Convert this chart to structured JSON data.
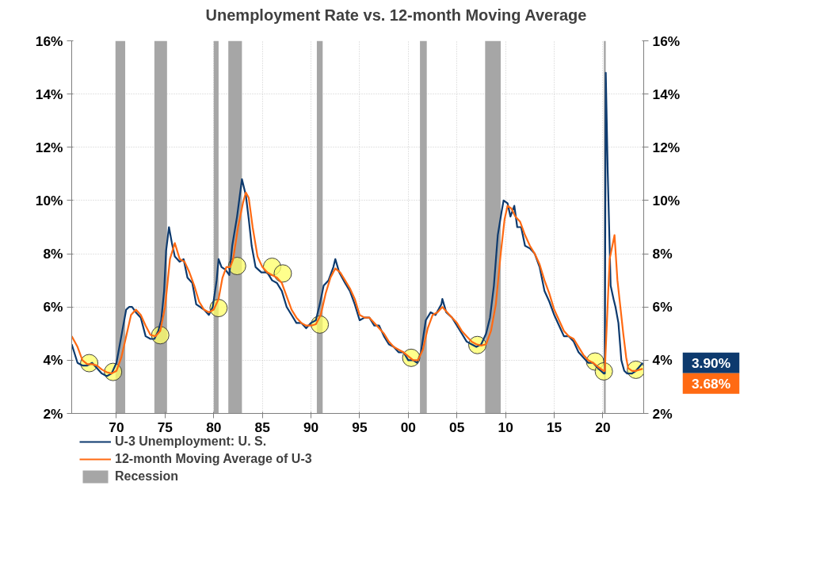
{
  "chart_data": {
    "type": "line",
    "title": "Unemployment Rate vs. 12-month Moving Average",
    "xlim": [
      1965.4,
      2024.2
    ],
    "xticks": [
      {
        "value": 1970,
        "label": "70"
      },
      {
        "value": 1975,
        "label": "75"
      },
      {
        "value": 1980,
        "label": "80"
      },
      {
        "value": 1985,
        "label": "85"
      },
      {
        "value": 1990,
        "label": "90"
      },
      {
        "value": 1995,
        "label": "95"
      },
      {
        "value": 2000,
        "label": "00"
      },
      {
        "value": 2005,
        "label": "05"
      },
      {
        "value": 2010,
        "label": "10"
      },
      {
        "value": 2015,
        "label": "15"
      },
      {
        "value": 2020,
        "label": "20"
      }
    ],
    "ylim": [
      2,
      16
    ],
    "yticks": [
      {
        "value": 2,
        "label": "2%"
      },
      {
        "value": 4,
        "label": "4%"
      },
      {
        "value": 6,
        "label": "6%"
      },
      {
        "value": 8,
        "label": "8%"
      },
      {
        "value": 10,
        "label": "10%"
      },
      {
        "value": 12,
        "label": "12%"
      },
      {
        "value": 14,
        "label": "14%"
      },
      {
        "value": 16,
        "label": "16%"
      }
    ],
    "y2lim": [
      2,
      16
    ],
    "y2ticks": [
      {
        "value": 2,
        "label": "2%"
      },
      {
        "value": 4,
        "label": "4%"
      },
      {
        "value": 6,
        "label": "6%"
      },
      {
        "value": 8,
        "label": "8%"
      },
      {
        "value": 10,
        "label": "10%"
      },
      {
        "value": 12,
        "label": "12%"
      },
      {
        "value": 14,
        "label": "14%"
      },
      {
        "value": 16,
        "label": "16%"
      }
    ],
    "grid": true,
    "legend": "bottom",
    "marker": "none",
    "line_style": "solid",
    "series": [
      {
        "name": "U-3 Unemployment: U. S.",
        "color": "#0d3a6e",
        "x": [
          1965.4,
          1966.0,
          1966.5,
          1967.0,
          1967.5,
          1968.0,
          1968.5,
          1969.0,
          1969.5,
          1970.0,
          1970.5,
          1971.0,
          1971.3,
          1971.6,
          1972.0,
          1972.5,
          1973.0,
          1973.5,
          1973.9,
          1974.3,
          1974.6,
          1974.9,
          1975.1,
          1975.4,
          1975.7,
          1976.0,
          1976.5,
          1976.9,
          1977.3,
          1977.8,
          1978.2,
          1978.6,
          1979.0,
          1979.5,
          1979.9,
          1980.3,
          1980.5,
          1980.8,
          1981.2,
          1981.6,
          1981.9,
          1982.4,
          1982.9,
          1983.3,
          1983.6,
          1983.9,
          1984.3,
          1984.9,
          1985.5,
          1986.0,
          1986.5,
          1987.0,
          1987.5,
          1988.0,
          1988.5,
          1989.0,
          1989.5,
          1990.0,
          1990.5,
          1990.9,
          1991.3,
          1991.8,
          1992.3,
          1992.5,
          1992.9,
          1993.5,
          1994.0,
          1994.5,
          1995.0,
          1995.5,
          1996.0,
          1996.5,
          1997.0,
          1997.5,
          1998.0,
          1998.5,
          1999.0,
          1999.5,
          2000.0,
          2000.5,
          2000.9,
          2001.3,
          2001.8,
          2002.3,
          2002.8,
          2003.4,
          2003.5,
          2003.9,
          2004.5,
          2005.0,
          2005.5,
          2006.0,
          2006.5,
          2007.0,
          2007.5,
          2008.0,
          2008.4,
          2008.8,
          2009.2,
          2009.6,
          2009.8,
          2010.2,
          2010.5,
          2010.9,
          2011.2,
          2011.6,
          2012.0,
          2012.5,
          2013.0,
          2013.5,
          2014.0,
          2014.5,
          2015.0,
          2015.5,
          2016.0,
          2016.5,
          2017.0,
          2017.5,
          2018.0,
          2018.5,
          2019.0,
          2019.5,
          2020.1,
          2020.2,
          2020.3,
          2020.5,
          2020.8,
          2021.1,
          2021.3,
          2021.6,
          2021.9,
          2022.2,
          2022.5,
          2023.0,
          2023.4,
          2024.1
        ],
        "values": [
          4.6,
          3.9,
          3.8,
          3.8,
          3.9,
          3.7,
          3.5,
          3.4,
          3.5,
          3.9,
          4.9,
          5.9,
          6.0,
          6.0,
          5.8,
          5.6,
          4.9,
          4.8,
          4.8,
          5.1,
          5.5,
          6.6,
          8.1,
          9.0,
          8.4,
          7.9,
          7.7,
          7.8,
          7.1,
          6.9,
          6.1,
          6.0,
          5.9,
          5.7,
          6.0,
          7.0,
          7.8,
          7.5,
          7.4,
          7.2,
          8.3,
          9.4,
          10.8,
          10.2,
          9.3,
          8.3,
          7.5,
          7.3,
          7.3,
          7.0,
          6.9,
          6.6,
          6.0,
          5.7,
          5.4,
          5.4,
          5.2,
          5.4,
          5.5,
          6.1,
          6.8,
          7.0,
          7.5,
          7.8,
          7.3,
          6.9,
          6.6,
          6.1,
          5.5,
          5.6,
          5.6,
          5.3,
          5.3,
          4.9,
          4.6,
          4.5,
          4.3,
          4.3,
          4.0,
          4.0,
          3.9,
          4.3,
          5.5,
          5.8,
          5.7,
          6.1,
          6.3,
          5.8,
          5.6,
          5.3,
          5.0,
          4.7,
          4.6,
          4.5,
          4.6,
          5.0,
          5.6,
          6.8,
          8.7,
          9.6,
          10.0,
          9.9,
          9.4,
          9.8,
          9.0,
          9.0,
          8.3,
          8.2,
          8.0,
          7.5,
          6.6,
          6.2,
          5.7,
          5.3,
          4.9,
          4.9,
          4.7,
          4.3,
          4.1,
          3.9,
          3.9,
          3.7,
          3.5,
          3.5,
          14.8,
          11.1,
          6.8,
          6.3,
          6.0,
          5.4,
          4.0,
          3.6,
          3.5,
          3.5,
          3.6,
          3.9
        ]
      },
      {
        "name": "12-month Moving Average of U-3",
        "color": "#ff6a13",
        "x": [
          1965.4,
          1966.0,
          1966.5,
          1967.0,
          1967.5,
          1968.0,
          1968.5,
          1969.0,
          1969.5,
          1970.0,
          1970.5,
          1971.0,
          1971.5,
          1972.0,
          1972.5,
          1973.0,
          1973.5,
          1974.0,
          1974.5,
          1975.0,
          1975.5,
          1976.0,
          1976.5,
          1977.0,
          1977.5,
          1978.0,
          1978.5,
          1979.0,
          1979.5,
          1980.0,
          1980.5,
          1980.9,
          1981.3,
          1981.7,
          1982.0,
          1982.5,
          1983.0,
          1983.3,
          1983.6,
          1984.0,
          1984.5,
          1985.0,
          1985.5,
          1986.0,
          1986.5,
          1987.0,
          1987.5,
          1988.0,
          1988.5,
          1989.0,
          1989.5,
          1990.0,
          1990.5,
          1991.0,
          1991.5,
          1992.0,
          1992.5,
          1993.0,
          1993.5,
          1994.0,
          1994.5,
          1995.0,
          1995.5,
          1996.0,
          1996.5,
          1997.0,
          1997.5,
          1998.0,
          1998.5,
          1999.0,
          1999.5,
          2000.0,
          2000.5,
          2001.0,
          2001.5,
          2002.0,
          2002.5,
          2003.0,
          2003.5,
          2004.0,
          2004.5,
          2005.0,
          2005.5,
          2006.0,
          2006.5,
          2007.0,
          2007.5,
          2008.0,
          2008.5,
          2009.0,
          2009.5,
          2009.9,
          2010.2,
          2010.6,
          2011.0,
          2011.5,
          2012.0,
          2012.5,
          2013.0,
          2013.5,
          2014.0,
          2014.5,
          2015.0,
          2015.5,
          2016.0,
          2016.5,
          2017.0,
          2017.5,
          2018.0,
          2018.5,
          2019.0,
          2019.5,
          2020.1,
          2020.2,
          2020.7,
          2021.2,
          2021.5,
          2021.8,
          2022.1,
          2022.4,
          2022.6,
          2023.0,
          2023.4,
          2024.1
        ],
        "values": [
          4.9,
          4.5,
          4.0,
          3.85,
          3.85,
          3.8,
          3.65,
          3.55,
          3.5,
          3.6,
          4.1,
          4.9,
          5.7,
          5.9,
          5.7,
          5.3,
          4.95,
          4.9,
          5.1,
          6.0,
          7.8,
          8.4,
          7.8,
          7.7,
          7.3,
          6.8,
          6.2,
          5.9,
          5.8,
          5.9,
          6.3,
          7.1,
          7.5,
          7.5,
          7.8,
          9.0,
          9.9,
          10.3,
          10.1,
          9.0,
          7.9,
          7.5,
          7.3,
          7.2,
          7.1,
          6.9,
          6.4,
          5.9,
          5.6,
          5.4,
          5.3,
          5.3,
          5.35,
          5.7,
          6.5,
          7.1,
          7.45,
          7.3,
          7.0,
          6.7,
          6.3,
          5.7,
          5.6,
          5.6,
          5.4,
          5.2,
          5.0,
          4.7,
          4.5,
          4.4,
          4.3,
          4.15,
          4.0,
          4.0,
          4.4,
          5.2,
          5.7,
          5.8,
          6.0,
          5.8,
          5.6,
          5.4,
          5.1,
          4.9,
          4.7,
          4.6,
          4.55,
          4.6,
          5.1,
          6.1,
          8.0,
          9.3,
          9.8,
          9.7,
          9.4,
          9.2,
          8.7,
          8.3,
          8.0,
          7.6,
          7.0,
          6.5,
          5.9,
          5.5,
          5.1,
          4.9,
          4.8,
          4.5,
          4.2,
          4.0,
          3.9,
          3.75,
          3.6,
          3.6,
          7.8,
          8.7,
          7.0,
          6.0,
          5.0,
          4.1,
          3.7,
          3.6,
          3.6,
          3.68
        ]
      },
      {
        "type": "scatter",
        "color": "#ffff66",
        "marker": "circle",
        "x": [
          1967.2,
          1969.65,
          1974.5,
          1980.5,
          1982.4,
          1986.0,
          1987.1,
          1990.9,
          2000.3,
          2007.1,
          2019.2,
          2020.1,
          2023.4
        ],
        "values": [
          3.89,
          3.56,
          4.94,
          5.96,
          7.54,
          7.51,
          7.26,
          5.34,
          4.09,
          4.57,
          3.95,
          3.58,
          3.64
        ]
      }
    ],
    "bands": [
      {
        "axis": "x",
        "from": 1969.9,
        "to": 1970.9,
        "label": "Recession",
        "color": "#a6a6a6"
      },
      {
        "axis": "x",
        "from": 1973.9,
        "to": 1975.2,
        "color": "#a6a6a6"
      },
      {
        "axis": "x",
        "from": 1980.0,
        "to": 1980.5,
        "color": "#a6a6a6"
      },
      {
        "axis": "x",
        "from": 1981.5,
        "to": 1982.9,
        "color": "#a6a6a6"
      },
      {
        "axis": "x",
        "from": 1990.6,
        "to": 1991.2,
        "color": "#a6a6a6"
      },
      {
        "axis": "x",
        "from": 2001.2,
        "to": 2001.9,
        "color": "#a6a6a6"
      },
      {
        "axis": "x",
        "from": 2007.9,
        "to": 2009.5,
        "color": "#a6a6a6"
      },
      {
        "axis": "x",
        "from": 2020.1,
        "to": 2020.3,
        "color": "#a6a6a6"
      }
    ],
    "annotations": [
      "3.90%",
      "3.68%"
    ]
  }
}
